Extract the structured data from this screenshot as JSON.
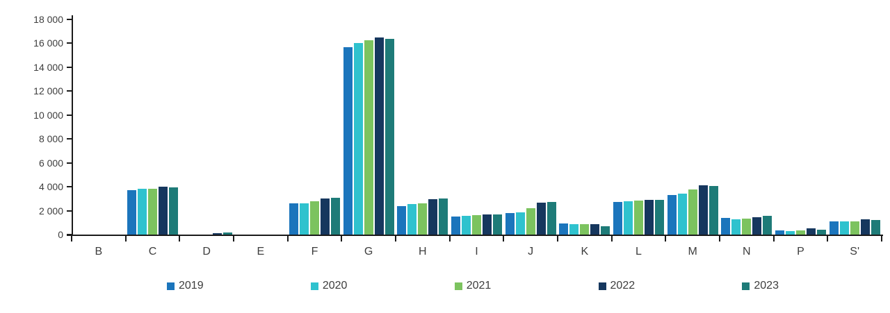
{
  "chart_data": {
    "type": "bar",
    "title": "",
    "xlabel": "",
    "ylabel": "",
    "categories": [
      "B",
      "C",
      "D",
      "E",
      "F",
      "G",
      "H",
      "I",
      "J",
      "K",
      "L",
      "M",
      "N",
      "P",
      "S'"
    ],
    "series": [
      {
        "name": "2019",
        "color": "#1B75BC",
        "values": [
          0,
          3700,
          0,
          0,
          2600,
          15700,
          2400,
          1500,
          1800,
          900,
          2700,
          3300,
          1400,
          350,
          1100
        ]
      },
      {
        "name": "2020",
        "color": "#2FC2CE",
        "values": [
          0,
          3850,
          0,
          0,
          2600,
          16000,
          2550,
          1550,
          1850,
          880,
          2800,
          3450,
          1300,
          300,
          1100
        ]
      },
      {
        "name": "2021",
        "color": "#7CC35F",
        "values": [
          0,
          3850,
          0,
          0,
          2800,
          16250,
          2600,
          1600,
          2200,
          880,
          2850,
          3750,
          1350,
          350,
          1100
        ]
      },
      {
        "name": "2022",
        "color": "#16375E",
        "values": [
          0,
          4000,
          100,
          0,
          3000,
          16500,
          2950,
          1700,
          2650,
          850,
          2900,
          4100,
          1450,
          500,
          1250
        ]
      },
      {
        "name": "2023",
        "color": "#1E7B78",
        "values": [
          0,
          3950,
          150,
          0,
          3050,
          16400,
          3000,
          1700,
          2700,
          700,
          2900,
          4050,
          1550,
          400,
          1200
        ]
      }
    ],
    "ylim": [
      0,
      18000
    ],
    "ytick_interval": 2000,
    "ytick_labels": [
      "18 000",
      "16 000",
      "14 000",
      "12 000",
      "10 000",
      "8 000",
      "6 000",
      "4 000",
      "2 000",
      "0"
    ],
    "grid": false,
    "legend_position": "bottom",
    "legend_labels": [
      "2019",
      "2020",
      "2021",
      "2022",
      "2023"
    ]
  },
  "layout_colors": {
    "axis": "#1a1a1a",
    "text": "#3d3d3d",
    "background": "#ffffff"
  }
}
